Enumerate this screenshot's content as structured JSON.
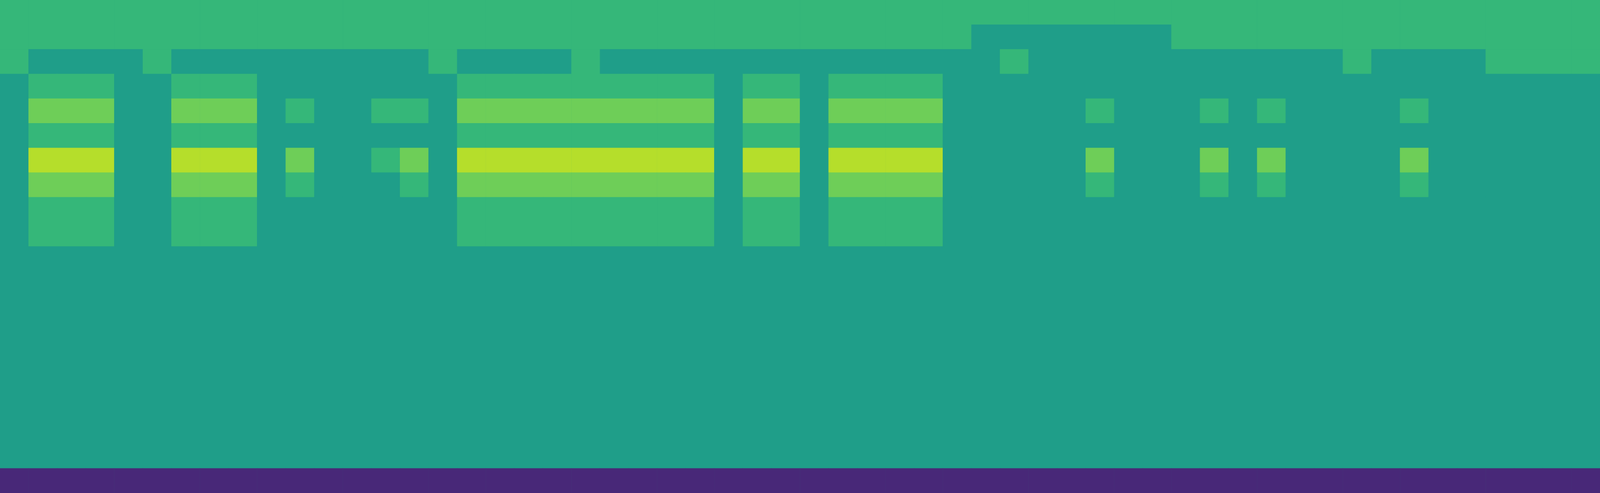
{
  "chart_data": {
    "type": "heatmap",
    "tick_labels": false,
    "color_range": [
      0,
      9
    ],
    "cells": [
      [
        6,
        6,
        6,
        6,
        6,
        6,
        6,
        6,
        6,
        6,
        6,
        6,
        6,
        6,
        6,
        6,
        6,
        6,
        6,
        6,
        6,
        6,
        6,
        6,
        6,
        6,
        6,
        6,
        6,
        6,
        6,
        6,
        6,
        6,
        6,
        6,
        6,
        6,
        6,
        6,
        6,
        6,
        6,
        6,
        6,
        6,
        6,
        6,
        6,
        6,
        6,
        6,
        6,
        6,
        6,
        6
      ],
      [
        6,
        6,
        6,
        6,
        6,
        6,
        6,
        6,
        6,
        6,
        6,
        6,
        6,
        6,
        6,
        6,
        6,
        6,
        6,
        6,
        6,
        6,
        6,
        6,
        6,
        6,
        6,
        6,
        6,
        6,
        6,
        6,
        6,
        6,
        5,
        5,
        5,
        5,
        5,
        5,
        5,
        6,
        6,
        6,
        6,
        6,
        6,
        6,
        6,
        6,
        6,
        6,
        6,
        6,
        6,
        6
      ],
      [
        6,
        5,
        5,
        5,
        5,
        6,
        5,
        5,
        5,
        5,
        5,
        5,
        5,
        5,
        5,
        6,
        5,
        5,
        5,
        5,
        6,
        5,
        5,
        5,
        5,
        5,
        5,
        5,
        5,
        5,
        5,
        5,
        5,
        5,
        5,
        6,
        5,
        5,
        5,
        5,
        5,
        5,
        5,
        5,
        5,
        5,
        5,
        6,
        5,
        5,
        5,
        5,
        6,
        6,
        6,
        6
      ],
      [
        5,
        6,
        6,
        6,
        5,
        5,
        6,
        6,
        6,
        5,
        5,
        5,
        5,
        5,
        5,
        5,
        6,
        6,
        6,
        6,
        6,
        6,
        6,
        6,
        6,
        5,
        6,
        6,
        5,
        6,
        6,
        6,
        6,
        5,
        5,
        5,
        5,
        5,
        5,
        5,
        5,
        5,
        5,
        5,
        5,
        5,
        5,
        5,
        5,
        5,
        5,
        5,
        5,
        5,
        5,
        5
      ],
      [
        5,
        7,
        7,
        7,
        5,
        5,
        7,
        7,
        7,
        5,
        6,
        5,
        5,
        6,
        6,
        5,
        7,
        7,
        7,
        7,
        7,
        7,
        7,
        7,
        7,
        5,
        7,
        7,
        5,
        7,
        7,
        7,
        7,
        5,
        5,
        5,
        5,
        5,
        6,
        5,
        5,
        5,
        6,
        5,
        6,
        5,
        5,
        5,
        5,
        6,
        5,
        5,
        5,
        5,
        5,
        5
      ],
      [
        5,
        6,
        6,
        6,
        5,
        5,
        6,
        6,
        6,
        5,
        5,
        5,
        5,
        5,
        5,
        5,
        6,
        6,
        6,
        6,
        6,
        6,
        6,
        6,
        6,
        5,
        6,
        6,
        5,
        6,
        6,
        6,
        6,
        5,
        5,
        5,
        5,
        5,
        5,
        5,
        5,
        5,
        5,
        5,
        5,
        5,
        5,
        5,
        5,
        5,
        5,
        5,
        5,
        5,
        5,
        5
      ],
      [
        5,
        8,
        8,
        8,
        5,
        5,
        8,
        8,
        8,
        5,
        7,
        5,
        5,
        6,
        7,
        5,
        8,
        8,
        8,
        8,
        8,
        8,
        8,
        8,
        8,
        5,
        8,
        8,
        5,
        8,
        8,
        8,
        8,
        5,
        5,
        5,
        5,
        5,
        7,
        5,
        5,
        5,
        7,
        5,
        7,
        5,
        5,
        5,
        5,
        7,
        5,
        5,
        5,
        5,
        5,
        5
      ],
      [
        5,
        7,
        7,
        7,
        5,
        5,
        7,
        7,
        7,
        5,
        6,
        5,
        5,
        5,
        6,
        5,
        7,
        7,
        7,
        7,
        7,
        7,
        7,
        7,
        7,
        5,
        7,
        7,
        5,
        7,
        7,
        7,
        7,
        5,
        5,
        5,
        5,
        5,
        6,
        5,
        5,
        5,
        6,
        5,
        6,
        5,
        5,
        5,
        5,
        6,
        5,
        5,
        5,
        5,
        5,
        5
      ],
      [
        5,
        6,
        6,
        6,
        5,
        5,
        6,
        6,
        6,
        5,
        5,
        5,
        5,
        5,
        5,
        5,
        6,
        6,
        6,
        6,
        6,
        6,
        6,
        6,
        6,
        5,
        6,
        6,
        5,
        6,
        6,
        6,
        6,
        5,
        5,
        5,
        5,
        5,
        5,
        5,
        5,
        5,
        5,
        5,
        5,
        5,
        5,
        5,
        5,
        5,
        5,
        5,
        5,
        5,
        5,
        5
      ],
      [
        5,
        6,
        6,
        6,
        5,
        5,
        6,
        6,
        6,
        5,
        5,
        5,
        5,
        5,
        5,
        5,
        6,
        6,
        6,
        6,
        6,
        6,
        6,
        6,
        6,
        5,
        6,
        6,
        5,
        6,
        6,
        6,
        6,
        5,
        5,
        5,
        5,
        5,
        5,
        5,
        5,
        5,
        5,
        5,
        5,
        5,
        5,
        5,
        5,
        5,
        5,
        5,
        5,
        5,
        5,
        5
      ],
      [
        5,
        5,
        5,
        5,
        5,
        5,
        5,
        5,
        5,
        5,
        5,
        5,
        5,
        5,
        5,
        5,
        5,
        5,
        5,
        5,
        5,
        5,
        5,
        5,
        5,
        5,
        5,
        5,
        5,
        5,
        5,
        5,
        5,
        5,
        5,
        5,
        5,
        5,
        5,
        5,
        5,
        5,
        5,
        5,
        5,
        5,
        5,
        5,
        5,
        5,
        5,
        5,
        5,
        5,
        5,
        5
      ],
      [
        5,
        5,
        5,
        5,
        5,
        5,
        5,
        5,
        5,
        5,
        5,
        5,
        5,
        5,
        5,
        5,
        5,
        5,
        5,
        5,
        5,
        5,
        5,
        5,
        5,
        5,
        5,
        5,
        5,
        5,
        5,
        5,
        5,
        5,
        5,
        5,
        5,
        5,
        5,
        5,
        5,
        5,
        5,
        5,
        5,
        5,
        5,
        5,
        5,
        5,
        5,
        5,
        5,
        5,
        5,
        5
      ],
      [
        5,
        5,
        5,
        5,
        5,
        5,
        5,
        5,
        5,
        5,
        5,
        5,
        5,
        5,
        5,
        5,
        5,
        5,
        5,
        5,
        5,
        5,
        5,
        5,
        5,
        5,
        5,
        5,
        5,
        5,
        5,
        5,
        5,
        5,
        5,
        5,
        5,
        5,
        5,
        5,
        5,
        5,
        5,
        5,
        5,
        5,
        5,
        5,
        5,
        5,
        5,
        5,
        5,
        5,
        5,
        5
      ],
      [
        5,
        5,
        5,
        5,
        5,
        5,
        5,
        5,
        5,
        5,
        5,
        5,
        5,
        5,
        5,
        5,
        5,
        5,
        5,
        5,
        5,
        5,
        5,
        5,
        5,
        5,
        5,
        5,
        5,
        5,
        5,
        5,
        5,
        5,
        5,
        5,
        5,
        5,
        5,
        5,
        5,
        5,
        5,
        5,
        5,
        5,
        5,
        5,
        5,
        5,
        5,
        5,
        5,
        5,
        5,
        5
      ],
      [
        5,
        5,
        5,
        5,
        5,
        5,
        5,
        5,
        5,
        5,
        5,
        5,
        5,
        5,
        5,
        5,
        5,
        5,
        5,
        5,
        5,
        5,
        5,
        5,
        5,
        5,
        5,
        5,
        5,
        5,
        5,
        5,
        5,
        5,
        5,
        5,
        5,
        5,
        5,
        5,
        5,
        5,
        5,
        5,
        5,
        5,
        5,
        5,
        5,
        5,
        5,
        5,
        5,
        5,
        5,
        5
      ],
      [
        5,
        5,
        5,
        5,
        5,
        5,
        5,
        5,
        5,
        5,
        5,
        5,
        5,
        5,
        5,
        5,
        5,
        5,
        5,
        5,
        5,
        5,
        5,
        5,
        5,
        5,
        5,
        5,
        5,
        5,
        5,
        5,
        5,
        5,
        5,
        5,
        5,
        5,
        5,
        5,
        5,
        5,
        5,
        5,
        5,
        5,
        5,
        5,
        5,
        5,
        5,
        5,
        5,
        5,
        5,
        5
      ],
      [
        5,
        5,
        5,
        5,
        5,
        5,
        5,
        5,
        5,
        5,
        5,
        5,
        5,
        5,
        5,
        5,
        5,
        5,
        5,
        5,
        5,
        5,
        5,
        5,
        5,
        5,
        5,
        5,
        5,
        5,
        5,
        5,
        5,
        5,
        5,
        5,
        5,
        5,
        5,
        5,
        5,
        5,
        5,
        5,
        5,
        5,
        5,
        5,
        5,
        5,
        5,
        5,
        5,
        5,
        5,
        5
      ],
      [
        5,
        5,
        5,
        5,
        5,
        5,
        5,
        5,
        5,
        5,
        5,
        5,
        5,
        5,
        5,
        5,
        5,
        5,
        5,
        5,
        5,
        5,
        5,
        5,
        5,
        5,
        5,
        5,
        5,
        5,
        5,
        5,
        5,
        5,
        5,
        5,
        5,
        5,
        5,
        5,
        5,
        5,
        5,
        5,
        5,
        5,
        5,
        5,
        5,
        5,
        5,
        5,
        5,
        5,
        5,
        5
      ],
      [
        5,
        5,
        5,
        5,
        5,
        5,
        5,
        5,
        5,
        5,
        5,
        5,
        5,
        5,
        5,
        5,
        5,
        5,
        5,
        5,
        5,
        5,
        5,
        5,
        5,
        5,
        5,
        5,
        5,
        5,
        5,
        5,
        5,
        5,
        5,
        5,
        5,
        5,
        5,
        5,
        5,
        5,
        5,
        5,
        5,
        5,
        5,
        5,
        5,
        5,
        5,
        5,
        5,
        5,
        5,
        5
      ],
      [
        1,
        1,
        1,
        1,
        1,
        1,
        1,
        1,
        1,
        1,
        1,
        1,
        1,
        1,
        1,
        1,
        1,
        1,
        1,
        1,
        1,
        1,
        1,
        1,
        1,
        1,
        1,
        1,
        1,
        1,
        1,
        1,
        1,
        1,
        1,
        1,
        1,
        1,
        1,
        1,
        1,
        1,
        1,
        1,
        1,
        1,
        1,
        1,
        1,
        1,
        1,
        1,
        1,
        1,
        1,
        1
      ]
    ]
  }
}
